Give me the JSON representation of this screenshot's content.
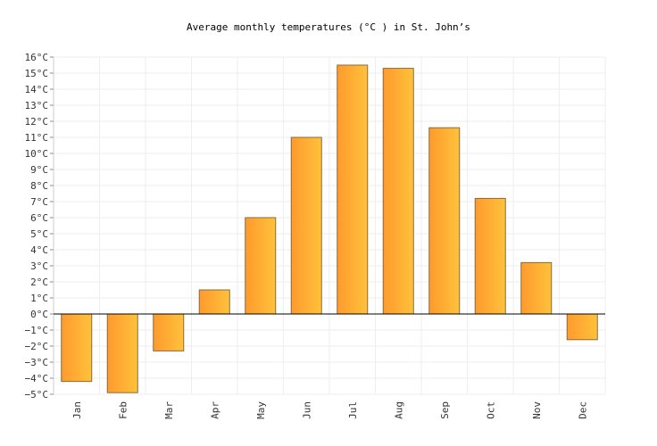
{
  "chart_data": {
    "type": "bar",
    "title": "Average monthly temperatures (°C ) in St. John’s",
    "xlabel": "",
    "ylabel": "",
    "categories": [
      "Jan",
      "Feb",
      "Mar",
      "Apr",
      "May",
      "Jun",
      "Jul",
      "Aug",
      "Sep",
      "Oct",
      "Nov",
      "Dec"
    ],
    "values": [
      -4.2,
      -4.9,
      -2.3,
      1.5,
      6.0,
      11.0,
      15.5,
      15.3,
      11.6,
      7.2,
      3.2,
      -1.6
    ],
    "ylim": [
      -5,
      16
    ],
    "y_ticks": [
      -5,
      -4,
      -3,
      -2,
      -1,
      0,
      1,
      2,
      3,
      4,
      5,
      6,
      7,
      8,
      9,
      10,
      11,
      12,
      13,
      14,
      15,
      16
    ],
    "y_tick_suffix": "°C",
    "grid": true,
    "colors": {
      "bar_start": "#ff9a2e",
      "bar_end": "#ffc23a",
      "bar_stroke": "#8a6a3a",
      "grid": "#eeeeee",
      "zero_line": "#000000"
    }
  }
}
